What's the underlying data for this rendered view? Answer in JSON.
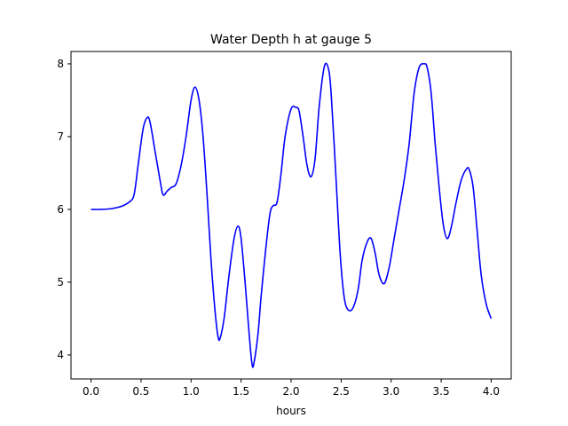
{
  "chart_data": {
    "type": "line",
    "title": "Water Depth h at gauge 5",
    "xlabel": "hours",
    "ylabel": "",
    "xlim": [
      -0.2,
      4.2
    ],
    "ylim": [
      3.67,
      8.17
    ],
    "xticks": [
      0.0,
      0.5,
      1.0,
      1.5,
      2.0,
      2.5,
      3.0,
      3.5,
      4.0
    ],
    "xtick_labels": [
      "0.0",
      "0.5",
      "1.0",
      "1.5",
      "2.0",
      "2.5",
      "3.0",
      "3.5",
      "4.0"
    ],
    "yticks": [
      4,
      5,
      6,
      7,
      8
    ],
    "ytick_labels": [
      "4",
      "5",
      "6",
      "7",
      "8"
    ],
    "grid": false,
    "series": [
      {
        "color": "#0000ff",
        "x": [
          0.0,
          0.1,
          0.2,
          0.3,
          0.38,
          0.43,
          0.47,
          0.52,
          0.56,
          0.59,
          0.64,
          0.69,
          0.72,
          0.76,
          0.8,
          0.85,
          0.9,
          0.95,
          1.0,
          1.04,
          1.08,
          1.12,
          1.16,
          1.2,
          1.24,
          1.27,
          1.29,
          1.33,
          1.38,
          1.43,
          1.47,
          1.5,
          1.54,
          1.58,
          1.61,
          1.63,
          1.67,
          1.7,
          1.75,
          1.79,
          1.82,
          1.86,
          1.9,
          1.94,
          2.0,
          2.05,
          2.08,
          2.12,
          2.16,
          2.2,
          2.24,
          2.28,
          2.33,
          2.37,
          2.4,
          2.45,
          2.49,
          2.53,
          2.57,
          2.62,
          2.67,
          2.71,
          2.76,
          2.8,
          2.84,
          2.88,
          2.93,
          2.98,
          3.03,
          3.08,
          3.13,
          3.18,
          3.23,
          3.28,
          3.33,
          3.36,
          3.4,
          3.44,
          3.48,
          3.52,
          3.56,
          3.6,
          3.65,
          3.7,
          3.75,
          3.78,
          3.82,
          3.86,
          3.9,
          3.95,
          4.0
        ],
        "y": [
          6.0,
          6.0,
          6.01,
          6.04,
          6.1,
          6.2,
          6.6,
          7.1,
          7.26,
          7.2,
          6.8,
          6.4,
          6.2,
          6.25,
          6.3,
          6.35,
          6.6,
          7.0,
          7.5,
          7.68,
          7.5,
          7.0,
          6.2,
          5.3,
          4.6,
          4.25,
          4.23,
          4.5,
          5.1,
          5.6,
          5.77,
          5.6,
          5.0,
          4.3,
          3.87,
          3.9,
          4.3,
          4.8,
          5.5,
          5.95,
          6.05,
          6.1,
          6.5,
          7.0,
          7.38,
          7.4,
          7.35,
          7.0,
          6.6,
          6.45,
          6.7,
          7.4,
          7.95,
          7.95,
          7.6,
          6.4,
          5.4,
          4.8,
          4.62,
          4.65,
          4.9,
          5.3,
          5.55,
          5.6,
          5.4,
          5.1,
          4.98,
          5.2,
          5.6,
          6.0,
          6.4,
          6.9,
          7.6,
          7.95,
          8.0,
          7.95,
          7.6,
          6.9,
          6.3,
          5.8,
          5.6,
          5.75,
          6.1,
          6.4,
          6.55,
          6.55,
          6.3,
          5.7,
          5.1,
          4.7,
          4.5
        ]
      }
    ]
  }
}
